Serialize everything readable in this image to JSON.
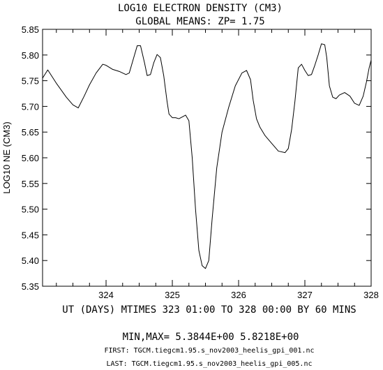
{
  "chart_data": {
    "type": "line",
    "title": "LOG10 ELECTRON DENSITY (CM3)",
    "subtitle": "GLOBAL MEANS: ZP=  1.75",
    "ylabel": "LOG10 NE (CM3)",
    "xlabel": "UT (DAYS) MTIMES 323 01:00 TO 328 00:00 BY   60 MINS",
    "xlim": [
      323.0417,
      328.0
    ],
    "ylim": [
      5.35,
      5.85
    ],
    "x_ticks": [
      324,
      325,
      326,
      327,
      328
    ],
    "x_tick_labels": [
      "324",
      "325",
      "326",
      "327",
      "328"
    ],
    "y_ticks": [
      5.35,
      5.4,
      5.45,
      5.5,
      5.55,
      5.6,
      5.65,
      5.7,
      5.75,
      5.8,
      5.85
    ],
    "y_tick_labels": [
      "5.35",
      "5.40",
      "5.45",
      "5.50",
      "5.55",
      "5.60",
      "5.65",
      "5.70",
      "5.75",
      "5.80",
      "5.85"
    ],
    "grid": false,
    "series": [
      {
        "x": [
          323.042,
          323.12,
          323.25,
          323.4,
          323.5,
          323.58,
          323.67,
          323.75,
          323.85,
          323.95,
          324.0,
          324.1,
          324.2,
          324.3,
          324.35,
          324.42,
          324.47,
          324.52,
          324.58,
          324.62,
          324.67,
          324.72,
          324.77,
          324.82,
          324.87,
          324.92,
          324.95,
          325.0,
          325.05,
          325.1,
          325.2,
          325.25,
          325.3,
          325.35,
          325.4,
          325.45,
          325.5,
          325.55,
          325.6,
          325.67,
          325.75,
          325.85,
          325.95,
          326.05,
          326.12,
          326.18,
          326.22,
          326.27,
          326.32,
          326.4,
          326.5,
          326.6,
          326.7,
          326.75,
          326.8,
          326.85,
          326.9,
          326.95,
          327.0,
          327.05,
          327.1,
          327.15,
          327.2,
          327.25,
          327.3,
          327.33,
          327.37,
          327.42,
          327.47,
          327.52,
          327.6,
          327.68,
          327.75,
          327.82,
          327.88,
          327.93,
          327.97,
          328.0
        ],
        "values": [
          5.755,
          5.771,
          5.745,
          5.718,
          5.703,
          5.697,
          5.72,
          5.742,
          5.765,
          5.782,
          5.78,
          5.772,
          5.768,
          5.762,
          5.765,
          5.796,
          5.818,
          5.818,
          5.785,
          5.76,
          5.762,
          5.785,
          5.801,
          5.795,
          5.76,
          5.71,
          5.685,
          5.678,
          5.678,
          5.676,
          5.683,
          5.672,
          5.6,
          5.5,
          5.42,
          5.39,
          5.3844,
          5.4,
          5.48,
          5.58,
          5.65,
          5.698,
          5.74,
          5.765,
          5.77,
          5.752,
          5.712,
          5.676,
          5.66,
          5.643,
          5.628,
          5.613,
          5.61,
          5.618,
          5.655,
          5.71,
          5.775,
          5.782,
          5.77,
          5.76,
          5.762,
          5.78,
          5.8,
          5.8218,
          5.82,
          5.795,
          5.74,
          5.718,
          5.715,
          5.722,
          5.727,
          5.72,
          5.706,
          5.702,
          5.72,
          5.748,
          5.775,
          5.79
        ]
      }
    ]
  },
  "footer": {
    "minmax_label": "MIN,MAX=   5.3844E+00   5.8218E+00",
    "first_label": "FIRST: TGCM.tiegcm1.95.s_nov2003_heelis_gpi_001.nc",
    "last_label": "LAST:  TGCM.tiegcm1.95.s_nov2003_heelis_gpi_005.nc"
  },
  "colors": {
    "line": "#000000",
    "axes": "#000000",
    "background": "#ffffff"
  }
}
